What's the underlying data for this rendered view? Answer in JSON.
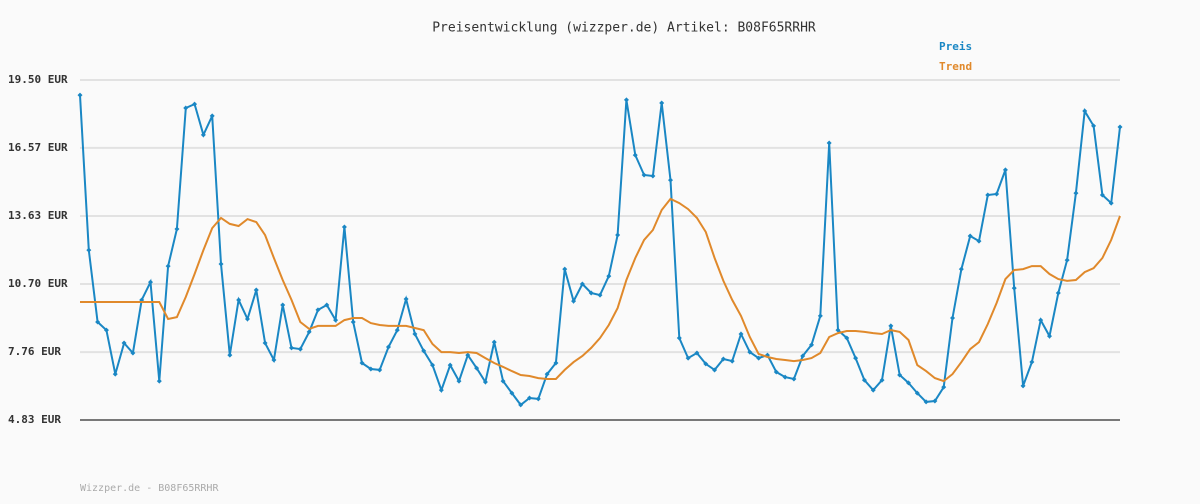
{
  "chart_data": {
    "type": "line",
    "title": "Preisentwicklung (wizzper.de) Artikel: B08F65RRHR",
    "footer": "Wizzper.de - B08F65RRHR",
    "ylim": [
      4.83,
      19.5
    ],
    "yticks": [
      {
        "value": 4.83,
        "label": "4.83 EUR"
      },
      {
        "value": 7.76,
        "label": "7.76 EUR"
      },
      {
        "value": 10.7,
        "label": "10.70 EUR"
      },
      {
        "value": 13.63,
        "label": "13.63 EUR"
      },
      {
        "value": 16.57,
        "label": "16.57 EUR"
      },
      {
        "value": 19.5,
        "label": "19.50 EUR"
      }
    ],
    "grid": true,
    "legend": "top-right",
    "series": [
      {
        "name": "Preis",
        "color": "#1a87c4",
        "markers": true,
        "values": [
          18.85,
          12.16,
          9.06,
          8.71,
          6.81,
          8.15,
          7.72,
          10.01,
          10.78,
          6.51,
          11.47,
          13.07,
          18.29,
          18.46,
          17.13,
          17.95,
          11.56,
          7.63,
          10.01,
          9.19,
          10.44,
          8.15,
          7.42,
          9.79,
          7.94,
          7.89,
          8.63,
          9.58,
          9.79,
          9.14,
          13.16,
          9.06,
          7.29,
          7.03,
          6.99,
          7.98,
          8.71,
          10.05,
          8.54,
          7.81,
          7.2,
          6.12,
          7.2,
          6.51,
          7.63,
          7.07,
          6.47,
          8.19,
          6.51,
          5.99,
          5.48,
          5.78,
          5.74,
          6.81,
          7.29,
          11.34,
          9.96,
          10.7,
          10.31,
          10.22,
          11.04,
          12.81,
          18.64,
          16.26,
          15.4,
          15.36,
          18.51,
          15.18,
          8.37,
          7.5,
          7.72,
          7.25,
          6.99,
          7.46,
          7.37,
          8.54,
          7.76,
          7.5,
          7.63,
          6.9,
          6.68,
          6.6,
          7.59,
          8.07,
          9.32,
          16.78,
          8.71,
          8.37,
          7.5,
          6.55,
          6.12,
          6.55,
          8.89,
          6.77,
          6.43,
          5.99,
          5.61,
          5.65,
          6.25,
          9.23,
          11.34,
          12.77,
          12.55,
          14.54,
          14.58,
          15.62,
          10.52,
          6.3,
          7.33,
          9.14,
          8.45,
          10.31,
          11.73,
          14.62,
          18.16,
          17.52,
          14.54,
          14.19,
          17.47
        ]
      },
      {
        "name": "Trend",
        "color": "#e0892b",
        "markers": false,
        "values": [
          9.92,
          9.92,
          9.92,
          9.92,
          9.92,
          9.92,
          9.92,
          9.92,
          9.92,
          9.92,
          9.19,
          9.27,
          10.14,
          11.13,
          12.16,
          13.11,
          13.55,
          13.29,
          13.2,
          13.5,
          13.37,
          12.81,
          11.82,
          10.87,
          10.01,
          9.06,
          8.76,
          8.89,
          8.89,
          8.89,
          9.14,
          9.23,
          9.23,
          9.01,
          8.93,
          8.89,
          8.89,
          8.89,
          8.8,
          8.71,
          8.11,
          7.76,
          7.76,
          7.72,
          7.76,
          7.72,
          7.5,
          7.29,
          7.12,
          6.94,
          6.77,
          6.73,
          6.64,
          6.6,
          6.6,
          6.99,
          7.33,
          7.59,
          7.94,
          8.37,
          8.93,
          9.66,
          10.87,
          11.82,
          12.6,
          13.03,
          13.89,
          14.37,
          14.19,
          13.93,
          13.55,
          12.94,
          11.82,
          10.83,
          10.01,
          9.32,
          8.41,
          7.68,
          7.55,
          7.46,
          7.42,
          7.37,
          7.42,
          7.5,
          7.72,
          8.41,
          8.58,
          8.67,
          8.67,
          8.63,
          8.58,
          8.54,
          8.71,
          8.63,
          8.28,
          7.2,
          6.94,
          6.64,
          6.51,
          6.81,
          7.33,
          7.89,
          8.19,
          8.97,
          9.88,
          10.91,
          11.3,
          11.34,
          11.47,
          11.47,
          11.13,
          10.91,
          10.83,
          10.87,
          11.21,
          11.38,
          11.82,
          12.6,
          13.63
        ]
      }
    ]
  }
}
